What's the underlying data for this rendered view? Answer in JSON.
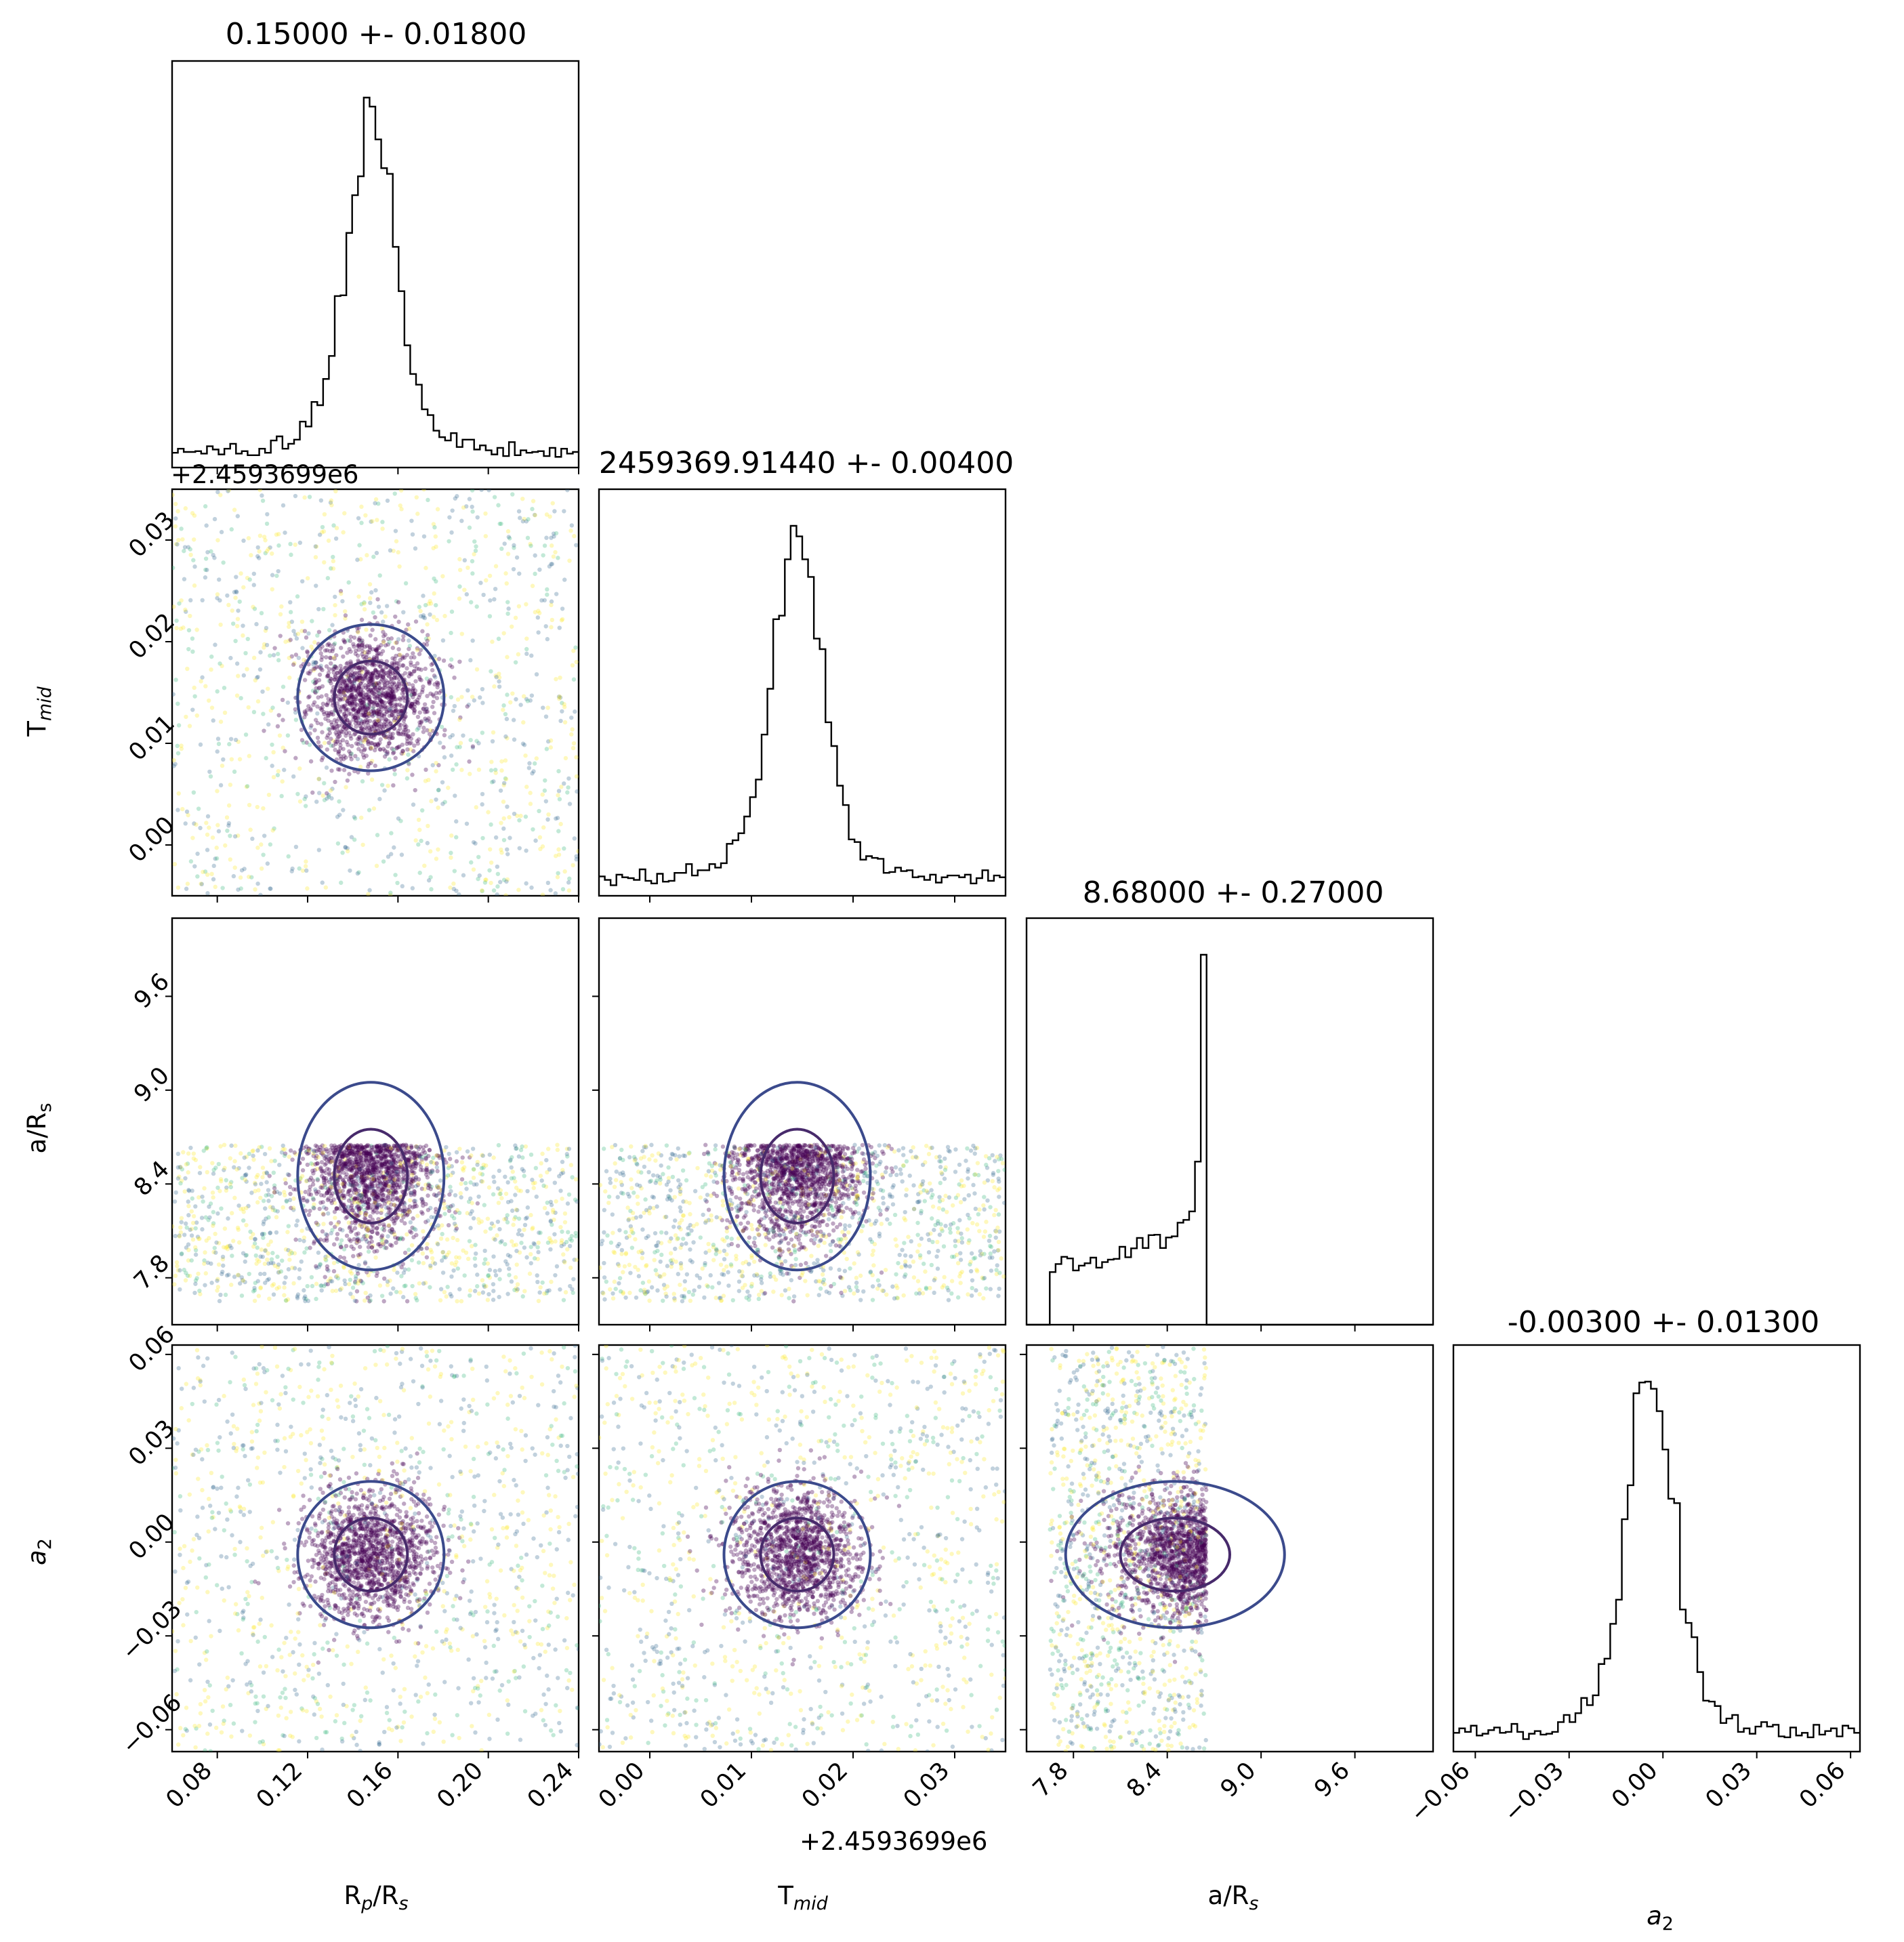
{
  "figure": {
    "titles": {
      "rp_rs": "0.15000 +- 0.01800",
      "t_mid": "2459369.91440 +- 0.00400",
      "a_rs": "8.68000 +- 0.27000",
      "a2": "-0.00300 +- 0.01300"
    },
    "axis_labels": {
      "rp_rs": {
        "main": "R",
        "sub": "p",
        "rest": "/R",
        "sub2": "s"
      },
      "t_mid": {
        "main": "T",
        "sub": "mid"
      },
      "a_rs": {
        "main": "a/R",
        "sub": "s"
      },
      "a2": {
        "main": "a",
        "sub": "2"
      }
    },
    "offset_text": {
      "t_mid_y": "+2.4593699e6",
      "t_mid_x": "+2.4593699e6"
    }
  },
  "chart_data": {
    "type": "scatter",
    "description_kind": "corner plot of MCMC posterior samples",
    "parameters": [
      "R_p/R_s",
      "T_mid",
      "a/R_s",
      "a_2"
    ],
    "ranges": {
      "rp_rs": [
        0.06,
        0.24
      ],
      "t_mid": [
        -0.005,
        0.035
      ],
      "a_rs": [
        7.5,
        10.1
      ],
      "a2": [
        -0.067,
        0.063
      ]
    },
    "ticks": {
      "rp_rs": [
        "0.08",
        "0.12",
        "0.16",
        "0.20",
        "0.24"
      ],
      "t_mid": [
        "0.00",
        "0.01",
        "0.02",
        "0.03"
      ],
      "a_rs": [
        "7.8",
        "8.4",
        "9.0",
        "9.6"
      ],
      "a2": [
        "−0.06",
        "−0.03",
        "0.00",
        "0.03",
        "0.06"
      ]
    },
    "marginals": {
      "rp_rs": {
        "mean": 0.15,
        "std": 0.018,
        "peak_at": 0.148,
        "tail_floor": 0.07
      },
      "t_mid": {
        "mean": 0.0144,
        "std": 0.004,
        "peak_at": 0.0145,
        "tail_floor": 0.06
      },
      "a_rs": {
        "mean": 8.68,
        "std": 0.27,
        "upper_cutoff": 8.65,
        "lower_cutoff": 7.65
      },
      "a2": {
        "mean": -0.003,
        "std": 0.013,
        "peak_at": -0.004,
        "tail_floor": 0.04
      }
    },
    "colors": {
      "contour_outer": "#3b4a8c",
      "contour_inner": "#472a6b",
      "contour_low": "#f7e225",
      "hist_line": "#000000",
      "scatter_dense": "#440154",
      "scatter_mid": "#31688e",
      "scatter_light": "#35b779",
      "scatter_yellow": "#fde725"
    },
    "grid": false,
    "legend": "none"
  }
}
